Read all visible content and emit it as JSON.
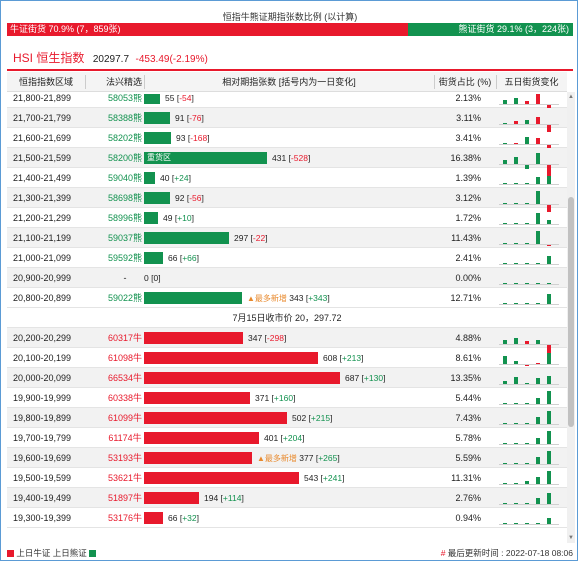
{
  "title": "恒指牛熊证期指张数比例 (以计算)",
  "ratio": {
    "bull_label": "牛证街货 70.9% (7，859张)",
    "bear_label": "熊证街货 29.1% (3，224张)",
    "bull_pct": 70.9,
    "bear_pct": 29.1
  },
  "hsi": {
    "name": "HSI 恒生指数",
    "value": "20297.7",
    "change": "-453.49(-2.19%)"
  },
  "columns": {
    "range": "恒指指数区域",
    "code": "法兴精选",
    "relative": "相对期指张数 [括号内为一日变化]",
    "share": "街货占比 (%)",
    "trend": "五日街货变化"
  },
  "bear_rows": [
    {
      "range": "21,800-21,899",
      "code": "58053熊",
      "count": 55,
      "change": "-54",
      "pct": "2.13%",
      "spark": [
        {
          "v": 0.25,
          "t": "bear"
        },
        {
          "v": 0.4,
          "t": "bear"
        },
        {
          "v": 0.2,
          "t": "bull"
        },
        {
          "v": 0.7,
          "t": "bull"
        },
        {
          "v": -0.6,
          "t": "bull"
        }
      ]
    },
    {
      "range": "21,700-21,799",
      "code": "58388熊",
      "count": 91,
      "change": "-76",
      "pct": "3.11%",
      "spark": [
        {
          "v": 0.05,
          "t": "bear"
        },
        {
          "v": 0.2,
          "t": "bull"
        },
        {
          "v": 0.3,
          "t": "bear"
        },
        {
          "v": 0.5,
          "t": "bull"
        },
        {
          "v": -0.5,
          "t": "bull"
        }
      ]
    },
    {
      "range": "21,600-21,699",
      "code": "58202熊",
      "count": 93,
      "change": "-168",
      "pct": "3.41%",
      "spark": [
        {
          "v": 0.05,
          "t": "bear"
        },
        {
          "v": 0.1,
          "t": "bull"
        },
        {
          "v": 0.5,
          "t": "bear"
        },
        {
          "v": 0.4,
          "t": "bull"
        },
        {
          "v": -0.6,
          "t": "bull"
        }
      ]
    },
    {
      "range": "21,500-21,599",
      "code": "58200熊",
      "tag": "重货区",
      "count": 431,
      "change": "-528",
      "pct": "16.38%",
      "spark": [
        {
          "v": 0.3,
          "t": "bear"
        },
        {
          "v": 0.5,
          "t": "bear"
        },
        {
          "v": -0.3,
          "t": "bear"
        },
        {
          "v": 0.8,
          "t": "bear"
        },
        {
          "v": -0.8,
          "t": "bull"
        }
      ]
    },
    {
      "range": "21,400-21,499",
      "code": "59040熊",
      "count": 40,
      "change": "+24",
      "pct": "1.39%",
      "spark": [
        {
          "v": 0.0,
          "t": "bear"
        },
        {
          "v": 0.0,
          "t": "bear"
        },
        {
          "v": 0.0,
          "t": "bear"
        },
        {
          "v": 0.5,
          "t": "bear"
        },
        {
          "v": 0.6,
          "t": "bear"
        }
      ]
    },
    {
      "range": "21,300-21,399",
      "code": "58698熊",
      "count": 92,
      "change": "-56",
      "pct": "3.12%",
      "spark": [
        {
          "v": 0.0,
          "t": "bear"
        },
        {
          "v": 0.0,
          "t": "bear"
        },
        {
          "v": 0.0,
          "t": "bear"
        },
        {
          "v": 0.9,
          "t": "bear"
        },
        {
          "v": -0.5,
          "t": "bull"
        }
      ]
    },
    {
      "range": "21,200-21,299",
      "code": "58996熊",
      "count": 49,
      "change": "+10",
      "pct": "1.72%",
      "spark": [
        {
          "v": 0.0,
          "t": "bear"
        },
        {
          "v": 0.0,
          "t": "bear"
        },
        {
          "v": 0.0,
          "t": "bear"
        },
        {
          "v": 0.8,
          "t": "bear"
        },
        {
          "v": 0.3,
          "t": "bear"
        }
      ]
    },
    {
      "range": "21,100-21,199",
      "code": "59037熊",
      "count": 297,
      "change": "-22",
      "pct": "11.43%",
      "spark": [
        {
          "v": 0.0,
          "t": "bear"
        },
        {
          "v": 0.0,
          "t": "bear"
        },
        {
          "v": 0.0,
          "t": "bear"
        },
        {
          "v": 0.9,
          "t": "bear"
        },
        {
          "v": -0.1,
          "t": "bull"
        }
      ]
    },
    {
      "range": "21,000-21,099",
      "code": "59592熊",
      "count": 66,
      "change": "+66",
      "pct": "2.41%",
      "spark": [
        {
          "v": 0.0,
          "t": "bear"
        },
        {
          "v": 0.0,
          "t": "bear"
        },
        {
          "v": 0.0,
          "t": "bear"
        },
        {
          "v": 0.0,
          "t": "bear"
        },
        {
          "v": 0.6,
          "t": "bear"
        }
      ]
    },
    {
      "range": "20,900-20,999",
      "code": "-",
      "count": 0,
      "change": "0",
      "pct": "0.00%",
      "spark": [
        {
          "v": 0.0,
          "t": "bear"
        },
        {
          "v": 0.0,
          "t": "bear"
        },
        {
          "v": 0.0,
          "t": "bear"
        },
        {
          "v": 0.0,
          "t": "bear"
        },
        {
          "v": 0.0,
          "t": "bear"
        }
      ]
    },
    {
      "range": "20,800-20,899",
      "code": "59022熊",
      "tag_new": "▲最多新增",
      "count": 343,
      "change": "+343",
      "pct": "12.71%",
      "spark": [
        {
          "v": 0.0,
          "t": "bear"
        },
        {
          "v": 0.0,
          "t": "bear"
        },
        {
          "v": 0.0,
          "t": "bear"
        },
        {
          "v": 0.0,
          "t": "bear"
        },
        {
          "v": 0.7,
          "t": "bear"
        }
      ]
    }
  ],
  "close_label": "7月15日收市价 20，297.72",
  "bull_rows": [
    {
      "range": "20,200-20,299",
      "code": "60317牛",
      "count": 347,
      "change": "-298",
      "pct": "4.88%",
      "spark": [
        {
          "v": 0.3,
          "t": "bear"
        },
        {
          "v": 0.4,
          "t": "bear"
        },
        {
          "v": 0.2,
          "t": "bull"
        },
        {
          "v": 0.3,
          "t": "bear"
        },
        {
          "v": -0.6,
          "t": "bull"
        }
      ]
    },
    {
      "range": "20,100-20,199",
      "code": "61098牛",
      "count": 608,
      "change": "+213",
      "pct": "8.61%",
      "spark": [
        {
          "v": 0.6,
          "t": "bear"
        },
        {
          "v": 0.2,
          "t": "bear"
        },
        {
          "v": -0.1,
          "t": "bull"
        },
        {
          "v": 0.1,
          "t": "bull"
        },
        {
          "v": 0.8,
          "t": "bear"
        }
      ]
    },
    {
      "range": "20,000-20,099",
      "code": "66534牛",
      "count": 687,
      "change": "+130",
      "pct": "13.35%",
      "spark": [
        {
          "v": 0.2,
          "t": "bear"
        },
        {
          "v": 0.5,
          "t": "bear"
        },
        {
          "v": 0.1,
          "t": "bear"
        },
        {
          "v": 0.4,
          "t": "bear"
        },
        {
          "v": 0.6,
          "t": "bear"
        }
      ]
    },
    {
      "range": "19,900-19,999",
      "code": "60338牛",
      "count": 371,
      "change": "+160",
      "pct": "5.44%",
      "spark": [
        {
          "v": 0.1,
          "t": "bear"
        },
        {
          "v": 0.1,
          "t": "bear"
        },
        {
          "v": 0.1,
          "t": "bear"
        },
        {
          "v": 0.4,
          "t": "bear"
        },
        {
          "v": 0.9,
          "t": "bear"
        }
      ]
    },
    {
      "range": "19,800-19,899",
      "code": "61099牛",
      "count": 502,
      "change": "+215",
      "pct": "7.43%",
      "spark": [
        {
          "v": 0.1,
          "t": "bear"
        },
        {
          "v": 0.1,
          "t": "bear"
        },
        {
          "v": 0.1,
          "t": "bear"
        },
        {
          "v": 0.5,
          "t": "bear"
        },
        {
          "v": 0.9,
          "t": "bear"
        }
      ]
    },
    {
      "range": "19,700-19,799",
      "code": "61174牛",
      "count": 401,
      "change": "+204",
      "pct": "5.78%",
      "spark": [
        {
          "v": 0.1,
          "t": "bear"
        },
        {
          "v": 0.1,
          "t": "bear"
        },
        {
          "v": 0.1,
          "t": "bear"
        },
        {
          "v": 0.4,
          "t": "bear"
        },
        {
          "v": 0.9,
          "t": "bear"
        }
      ]
    },
    {
      "range": "19,600-19,699",
      "code": "53193牛",
      "tag_new": "▲最多新增",
      "count": 377,
      "change": "+265",
      "pct": "5.59%",
      "spark": [
        {
          "v": 0.1,
          "t": "bear"
        },
        {
          "v": 0.1,
          "t": "bear"
        },
        {
          "v": 0.1,
          "t": "bear"
        },
        {
          "v": 0.5,
          "t": "bear"
        },
        {
          "v": 0.9,
          "t": "bear"
        }
      ]
    },
    {
      "range": "19,500-19,599",
      "code": "53621牛",
      "count": 543,
      "change": "+241",
      "pct": "11.31%",
      "spark": [
        {
          "v": 0.1,
          "t": "bear"
        },
        {
          "v": 0.1,
          "t": "bear"
        },
        {
          "v": 0.2,
          "t": "bear"
        },
        {
          "v": 0.5,
          "t": "bear"
        },
        {
          "v": 0.9,
          "t": "bear"
        }
      ]
    },
    {
      "range": "19,400-19,499",
      "code": "51897牛",
      "count": 194,
      "change": "+114",
      "pct": "2.76%",
      "spark": [
        {
          "v": 0.1,
          "t": "bear"
        },
        {
          "v": 0.1,
          "t": "bear"
        },
        {
          "v": 0.1,
          "t": "bear"
        },
        {
          "v": 0.4,
          "t": "bear"
        },
        {
          "v": 0.8,
          "t": "bear"
        }
      ]
    },
    {
      "range": "19,300-19,399",
      "code": "53176牛",
      "count": 66,
      "change": "+32",
      "pct": "0.94%",
      "spark": [
        {
          "v": 0.1,
          "t": "bear"
        },
        {
          "v": 0.1,
          "t": "bear"
        },
        {
          "v": 0.1,
          "t": "bear"
        },
        {
          "v": 0.1,
          "t": "bear"
        },
        {
          "v": 0.4,
          "t": "bear"
        }
      ]
    }
  ],
  "legend": "上日牛证 上日熊证",
  "updated": {
    "hash": "#",
    "label": "最后更新时间 : 2022-07-18 08:06"
  },
  "colors": {
    "bull": "#e8192c",
    "bear": "#12924f"
  }
}
